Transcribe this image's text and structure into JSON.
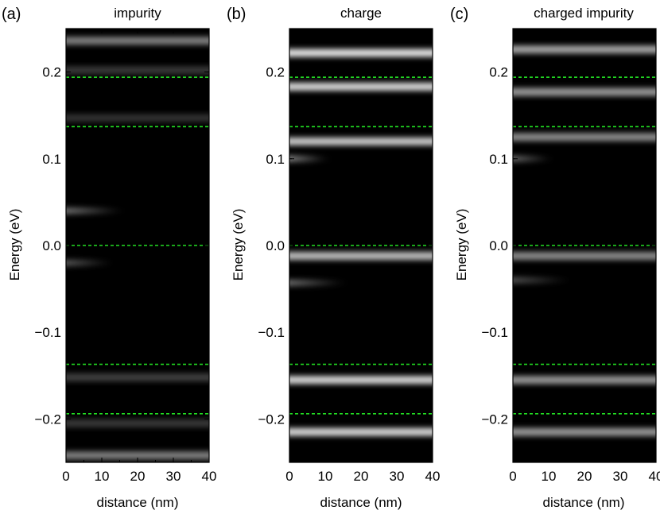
{
  "figure": {
    "panel_labels": [
      "(a)",
      "(b)",
      "(c)"
    ]
  },
  "chart_data": [
    {
      "type": "heatmap",
      "panel": "(a)",
      "title": "impurity",
      "xlabel": "distance (nm)",
      "ylabel": "Energy (eV)",
      "xlim": [
        0,
        40
      ],
      "ylim": [
        -0.25,
        0.25
      ],
      "xticks": [
        0,
        10,
        20,
        30,
        40
      ],
      "xtick_labels": [
        "0",
        "10",
        "20",
        "30",
        "40"
      ],
      "yticks": [
        -0.2,
        -0.1,
        0.0,
        0.1,
        0.2
      ],
      "ytick_labels": [
        "−0.2",
        "−0.1",
        "0.0",
        "0.1",
        "0.2"
      ],
      "reference_lines": [
        0.194,
        0.137,
        0.0,
        -0.137,
        -0.194
      ],
      "reference_line_color": "#22dd22",
      "colormap": "grayscale",
      "bands": [
        {
          "energy": 0.236,
          "intensity": 0.5,
          "x_start": 0,
          "x_end": 40
        },
        {
          "energy": 0.202,
          "intensity": 0.22,
          "x_start": 0,
          "x_end": 40
        },
        {
          "energy": 0.147,
          "intensity": 0.2,
          "x_start": 0,
          "x_end": 40
        },
        {
          "energy": 0.04,
          "intensity": 0.85,
          "x_start": 0,
          "x_end": 15
        },
        {
          "energy": -0.02,
          "intensity": 0.65,
          "x_start": 0,
          "x_end": 12
        },
        {
          "energy": -0.152,
          "intensity": 0.25,
          "x_start": 0,
          "x_end": 40
        },
        {
          "energy": -0.205,
          "intensity": 0.22,
          "x_start": 0,
          "x_end": 40
        },
        {
          "energy": -0.242,
          "intensity": 0.5,
          "x_start": 0,
          "x_end": 40
        }
      ]
    },
    {
      "type": "heatmap",
      "panel": "(b)",
      "title": "charge",
      "xlabel": "distance (nm)",
      "ylabel": "Energy (eV)",
      "xlim": [
        0,
        40
      ],
      "ylim": [
        -0.25,
        0.25
      ],
      "xticks": [
        0,
        10,
        20,
        30,
        40
      ],
      "xtick_labels": [
        "0",
        "10",
        "20",
        "30",
        "40"
      ],
      "yticks": [
        -0.2,
        -0.1,
        0.0,
        0.1,
        0.2
      ],
      "ytick_labels": [
        "−0.2",
        "−0.1",
        "0.0",
        "0.1",
        "0.2"
      ],
      "reference_lines": [
        0.194,
        0.137,
        0.0,
        -0.137,
        -0.194
      ],
      "reference_line_color": "#22dd22",
      "colormap": "grayscale",
      "bands": [
        {
          "energy": 0.222,
          "intensity": 0.9,
          "x_start": 0,
          "x_end": 40
        },
        {
          "energy": 0.183,
          "intensity": 0.85,
          "x_start": 0,
          "x_end": 40
        },
        {
          "energy": 0.12,
          "intensity": 0.8,
          "x_start": 0,
          "x_end": 40
        },
        {
          "energy": 0.1,
          "intensity": 0.95,
          "x_start": 0,
          "x_end": 10
        },
        {
          "energy": -0.012,
          "intensity": 0.75,
          "x_start": 0,
          "x_end": 40
        },
        {
          "energy": -0.043,
          "intensity": 0.8,
          "x_start": 0,
          "x_end": 15
        },
        {
          "energy": -0.155,
          "intensity": 0.85,
          "x_start": 0,
          "x_end": 40
        },
        {
          "energy": -0.215,
          "intensity": 0.85,
          "x_start": 0,
          "x_end": 40
        }
      ]
    },
    {
      "type": "heatmap",
      "panel": "(c)",
      "title": "charged impurity",
      "xlabel": "distance (nm)",
      "ylabel": "Energy (eV)",
      "xlim": [
        0,
        40
      ],
      "ylim": [
        -0.25,
        0.25
      ],
      "xticks": [
        0,
        10,
        20,
        30,
        40
      ],
      "xtick_labels": [
        "0",
        "10",
        "20",
        "30",
        "40"
      ],
      "yticks": [
        -0.2,
        -0.1,
        0.0,
        0.1,
        0.2
      ],
      "ytick_labels": [
        "−0.2",
        "−0.1",
        "0.0",
        "0.1",
        "0.2"
      ],
      "reference_lines": [
        0.194,
        0.137,
        0.0,
        -0.137,
        -0.194
      ],
      "reference_line_color": "#22dd22",
      "colormap": "grayscale",
      "bands": [
        {
          "energy": 0.226,
          "intensity": 0.65,
          "x_start": 0,
          "x_end": 40
        },
        {
          "energy": 0.177,
          "intensity": 0.6,
          "x_start": 0,
          "x_end": 40
        },
        {
          "energy": 0.125,
          "intensity": 0.55,
          "x_start": 0,
          "x_end": 40
        },
        {
          "energy": 0.1,
          "intensity": 0.75,
          "x_start": 0,
          "x_end": 10
        },
        {
          "energy": -0.012,
          "intensity": 0.55,
          "x_start": 0,
          "x_end": 40
        },
        {
          "energy": -0.04,
          "intensity": 0.6,
          "x_start": 0,
          "x_end": 15
        },
        {
          "energy": -0.155,
          "intensity": 0.6,
          "x_start": 0,
          "x_end": 40
        },
        {
          "energy": -0.215,
          "intensity": 0.6,
          "x_start": 0,
          "x_end": 40
        }
      ]
    }
  ]
}
